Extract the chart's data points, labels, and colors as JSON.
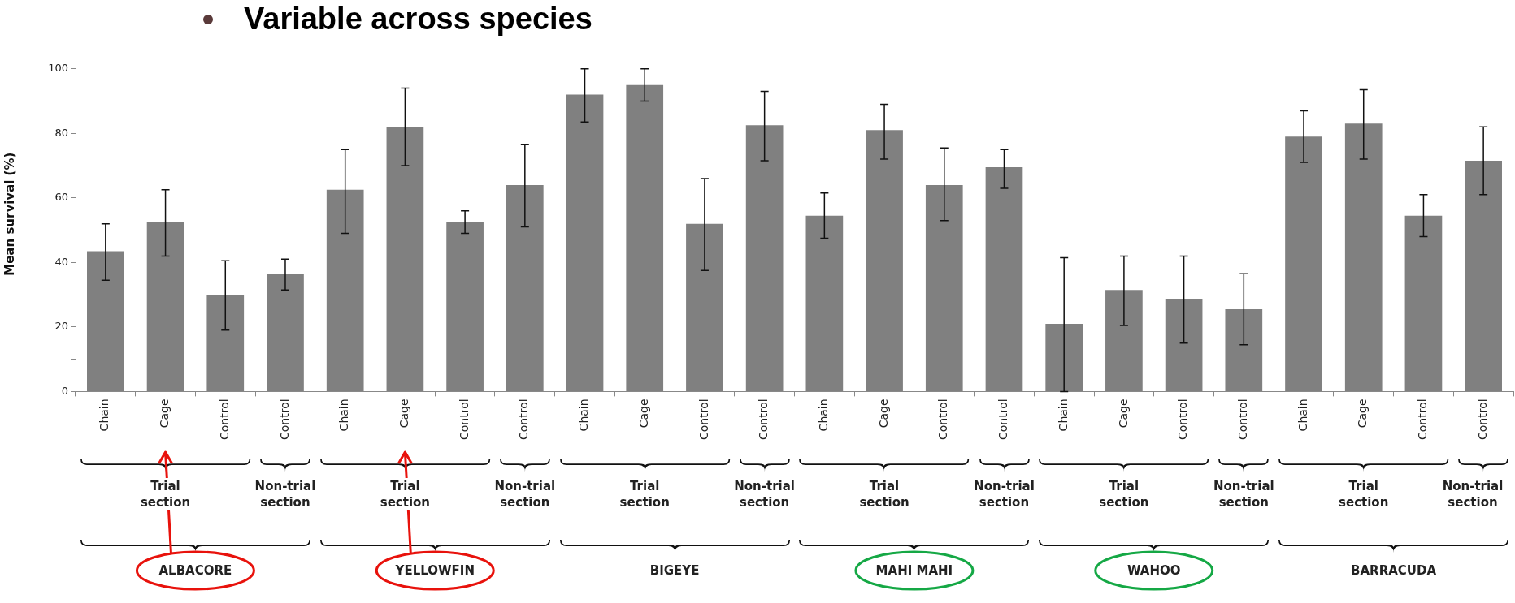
{
  "chart_data": {
    "type": "bar",
    "title": "Variable across species",
    "ylabel": "Mean survival (%)",
    "categories": [
      "Chain",
      "Cage",
      "Control",
      "Control",
      "Chain",
      "Cage",
      "Control",
      "Control",
      "Chain",
      "Cage",
      "Control",
      "Control",
      "Chain",
      "Cage",
      "Control",
      "Control",
      "Chain",
      "Cage",
      "Control",
      "Control",
      "Chain",
      "Cage",
      "Control",
      "Control"
    ],
    "values": [
      43.5,
      52.5,
      30,
      36.5,
      62.5,
      82,
      52.5,
      64,
      92,
      95,
      52,
      82.5,
      54.5,
      81,
      64,
      69.5,
      21,
      31.5,
      28.5,
      25.5,
      79,
      83,
      54.5,
      71.5
    ],
    "errors": [
      [
        34.5,
        52
      ],
      [
        42,
        62.5
      ],
      [
        19,
        40.5
      ],
      [
        31.5,
        41
      ],
      [
        49,
        75
      ],
      [
        70,
        94
      ],
      [
        49,
        56
      ],
      [
        51,
        76.5
      ],
      [
        83.5,
        100
      ],
      [
        90,
        100
      ],
      [
        37.5,
        66
      ],
      [
        71.5,
        93
      ],
      [
        47.5,
        61.5
      ],
      [
        72,
        89
      ],
      [
        53,
        75.5
      ],
      [
        63,
        75
      ],
      [
        0,
        41.5
      ],
      [
        20.5,
        42
      ],
      [
        15,
        42
      ],
      [
        14.5,
        36.5
      ],
      [
        71,
        87
      ],
      [
        72,
        93.5
      ],
      [
        48,
        61
      ],
      [
        61,
        82
      ]
    ],
    "color": "#808080",
    "ylim": [
      0,
      110
    ],
    "yticks": [
      0,
      {
        "value": 10,
        "label": null
      },
      20,
      {
        "value": 30,
        "label": null
      },
      40,
      {
        "value": 50,
        "label": null
      },
      60,
      {
        "value": 70,
        "label": null
      },
      80,
      {
        "value": 90,
        "label": null
      },
      100,
      {
        "value": 110,
        "label": null
      }
    ],
    "grid": false,
    "legend": false,
    "annotations": [
      "Trial section",
      "Non-trial section",
      "Trial section",
      "Non-trial section",
      "Trial section",
      "Non-trial section",
      "Trial section",
      "Non-trial section",
      "Trial section",
      "Non-trial section",
      "Trial section",
      "Non-trial section",
      "ALBACORE",
      "YELLOWFIN",
      "BIGEYE",
      "MAHI MAHI",
      "WAHOO",
      "BARRACUDA"
    ]
  }
}
